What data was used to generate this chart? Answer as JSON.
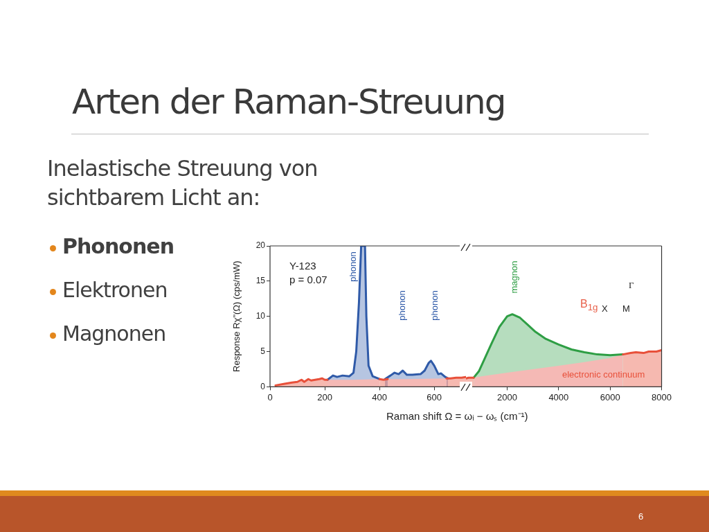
{
  "chart_data": [
    {
      "type": "area",
      "title": "Arten der Raman-Streuung",
      "subtitle": "Inelastische Streuung von sichtbarem Licht an:",
      "xlabel": "Raman shift Ω = ωᵢ − ωₛ (cm⁻¹)",
      "ylabel": "Response Rχ\"(Ω) (cps/mW)",
      "xlim": [
        0,
        716
      ],
      "xticks": [
        0,
        200,
        400,
        600
      ],
      "ylim": [
        0,
        20
      ],
      "yticks": [
        0,
        5,
        10,
        15,
        20
      ],
      "grid": false,
      "legend": false,
      "marker": "none",
      "line_style": "solid",
      "annotations": [
        "Phononen",
        "Elektronen",
        "Magnonen",
        "6",
        "Y-123",
        "p = 0.07",
        "phonon",
        "phonon",
        "phonon"
      ],
      "series": [
        {
          "color": "#f5b9b5",
          "x": [
            210,
            300,
            400
          ],
          "values": [
            1.0,
            1.0,
            1.1
          ]
        },
        {
          "color": "#e8503a",
          "x": [
            20,
            50,
            80,
            100,
            115,
            125,
            140,
            150,
            165,
            180,
            190,
            200,
            210
          ],
          "values": [
            0.2,
            0.4,
            0.6,
            0.7,
            1.0,
            0.7,
            1.1,
            0.9,
            1.0,
            1.1,
            1.2,
            1.0,
            1.0
          ]
        },
        {
          "color": "#e8503a",
          "x": [
            400,
            415,
            430
          ],
          "values": [
            1.1,
            1.0,
            1.1
          ]
        },
        {
          "color": "#e8503a",
          "x": [
            645,
            660,
            680,
            700,
            716
          ],
          "values": [
            1.2,
            1.2,
            1.3,
            1.3,
            1.4
          ]
        },
        {
          "color": "#f5b9b5",
          "x": [
            430,
            500,
            645
          ],
          "values": [
            1.1,
            1.1,
            1.2
          ]
        },
        {
          "color": "#2f5aa8",
          "x": [
            210,
            230,
            245,
            265,
            290,
            305,
            315,
            325,
            333,
            347,
            352,
            360,
            375,
            400
          ],
          "values": [
            1.0,
            1.6,
            1.4,
            1.6,
            1.5,
            2.0,
            5,
            12,
            20,
            20,
            10,
            3,
            1.5,
            1.1
          ]
        },
        {
          "color": "#2f5aa8",
          "x": [
            420,
            440,
            455,
            470,
            485,
            500,
            520,
            550,
            565,
            580,
            588,
            600,
            615,
            625,
            640,
            650
          ],
          "values": [
            1.1,
            1.6,
            2.0,
            1.8,
            2.3,
            1.7,
            1.7,
            1.8,
            2.3,
            3.4,
            3.7,
            3.0,
            1.8,
            1.9,
            1.4,
            1.2
          ]
        }
      ]
    },
    {
      "type": "area",
      "xlim": [
        400,
        8000
      ],
      "xticks": [
        2000,
        4000,
        6000,
        8000
      ],
      "ylim": [
        0,
        20
      ],
      "yticks": [
        0,
        5,
        10,
        15,
        20
      ],
      "tick_labels": "x",
      "grid": false,
      "legend": false,
      "marker": "none",
      "line_style": "solid",
      "annotations": [
        "magnon",
        "electronic continuum",
        "B$_{1g}$",
        "X",
        "M",
        "Γ"
      ],
      "series": [
        {
          "color": "#f5b9b5",
          "x": [
            700,
            1000,
            2000,
            3000,
            4000,
            5000,
            6000,
            6500
          ],
          "values": [
            1.3,
            1.5,
            2.0,
            2.5,
            3.0,
            3.5,
            4.1,
            4.6
          ]
        },
        {
          "color": "#e8503a",
          "x": [
            400,
            500,
            600,
            700
          ],
          "values": [
            1.2,
            1.3,
            1.3,
            1.3
          ]
        },
        {
          "color": "#e8503a",
          "x": [
            6500,
            6800,
            7000,
            7300,
            7500,
            7800,
            8000
          ],
          "values": [
            4.6,
            4.8,
            4.9,
            4.8,
            5.0,
            5.0,
            5.2
          ]
        },
        {
          "color": "#2e9e44",
          "x": [
            700,
            900,
            1100,
            1400,
            1700,
            2000,
            2200,
            2500,
            2800,
            3100,
            3500,
            4000,
            4500,
            5000,
            5500,
            6000,
            6500
          ],
          "values": [
            1.3,
            2.2,
            3.8,
            6.2,
            8.5,
            10.0,
            10.3,
            9.8,
            8.8,
            7.8,
            6.8,
            6.0,
            5.3,
            4.9,
            4.6,
            4.5,
            4.6
          ]
        }
      ]
    }
  ]
}
